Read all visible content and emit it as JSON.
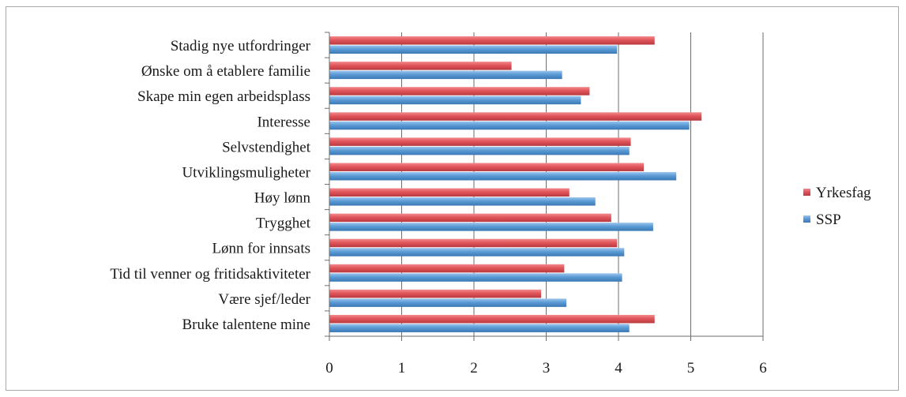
{
  "chart_data": {
    "type": "bar",
    "orientation": "horizontal",
    "categories": [
      "Stadig nye utfordringer",
      "Ønske om å etablere familie",
      "Skape min egen arbeidsplass",
      "Interesse",
      "Selvstendighet",
      "Utviklingsmuligheter",
      "Høy lønn",
      "Trygghet",
      "Lønn for innsats",
      "Tid til venner og fritidsaktiviteter",
      "Være sjef/leder",
      "Bruke talentene mine"
    ],
    "series": [
      {
        "name": "Yrkesfag",
        "color": "#e0555a",
        "values": [
          4.5,
          2.52,
          3.6,
          5.15,
          4.17,
          4.35,
          3.32,
          3.9,
          3.98,
          3.25,
          2.93,
          4.5
        ]
      },
      {
        "name": "SSP",
        "color": "#5b9bd5",
        "values": [
          3.98,
          3.22,
          3.48,
          4.98,
          4.15,
          4.8,
          3.68,
          4.48,
          4.08,
          4.05,
          3.28,
          4.15
        ]
      }
    ],
    "xlim": [
      0,
      6
    ],
    "xticks": [
      "0",
      "1",
      "2",
      "3",
      "4",
      "5",
      "6"
    ],
    "grid": "vertical",
    "legend_position": "right"
  }
}
